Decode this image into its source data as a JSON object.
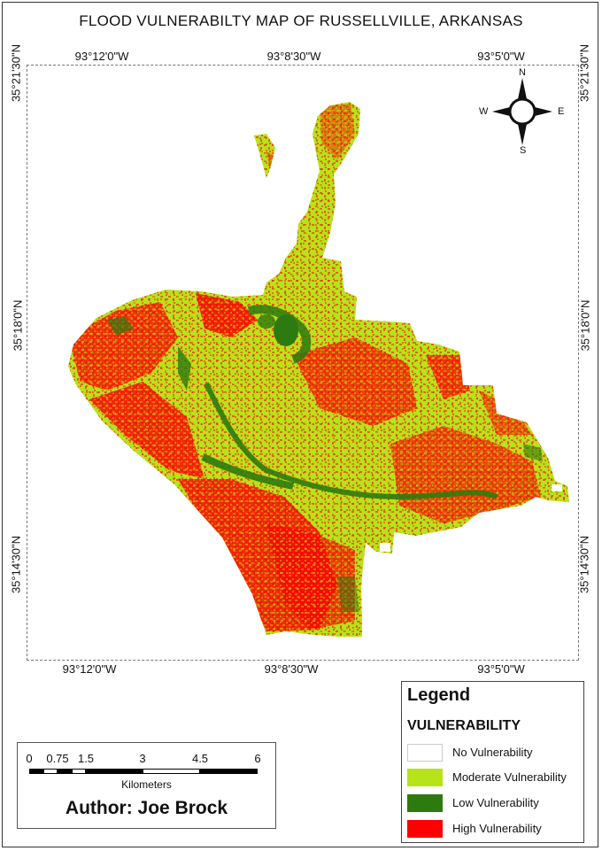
{
  "title": "FLOOD VULNERABILTY MAP OF RUSSELLVILLE, ARKANSAS",
  "coordinates": {
    "top": [
      "93°12'0\"W",
      "93°8'30\"W",
      "93°5'0\"W"
    ],
    "bottom": [
      "93°12'0\"W",
      "93°8'30\"W",
      "93°5'0\"W"
    ],
    "left": [
      "35°21'30\"N",
      "35°18'0\"N",
      "35°14'30\"N"
    ],
    "right": [
      "35°21'30\"N",
      "35°18'0\"N",
      "35°14'30\"N"
    ]
  },
  "compass": {
    "north": "N",
    "south": "S",
    "east": "E",
    "west": "W"
  },
  "legend": {
    "title": "Legend",
    "subtitle": "VULNERABILITY",
    "items": [
      {
        "label": "No Vulnerability",
        "color": "#ffffff"
      },
      {
        "label": "Moderate Vulnerability",
        "color": "#b6e31a"
      },
      {
        "label": "Low Vulnerability",
        "color": "#2d7a10"
      },
      {
        "label": "High Vulnerability",
        "color": "#ff0000"
      }
    ]
  },
  "scale_bar": {
    "ticks": [
      "0",
      "0.75",
      "1.5",
      "3",
      "4.5",
      "6"
    ],
    "units": "Kilometers"
  },
  "author": "Author: Joe Brock",
  "colors": {
    "high": "#ff0000",
    "moderate": "#b6e31a",
    "low": "#2d7a10"
  }
}
